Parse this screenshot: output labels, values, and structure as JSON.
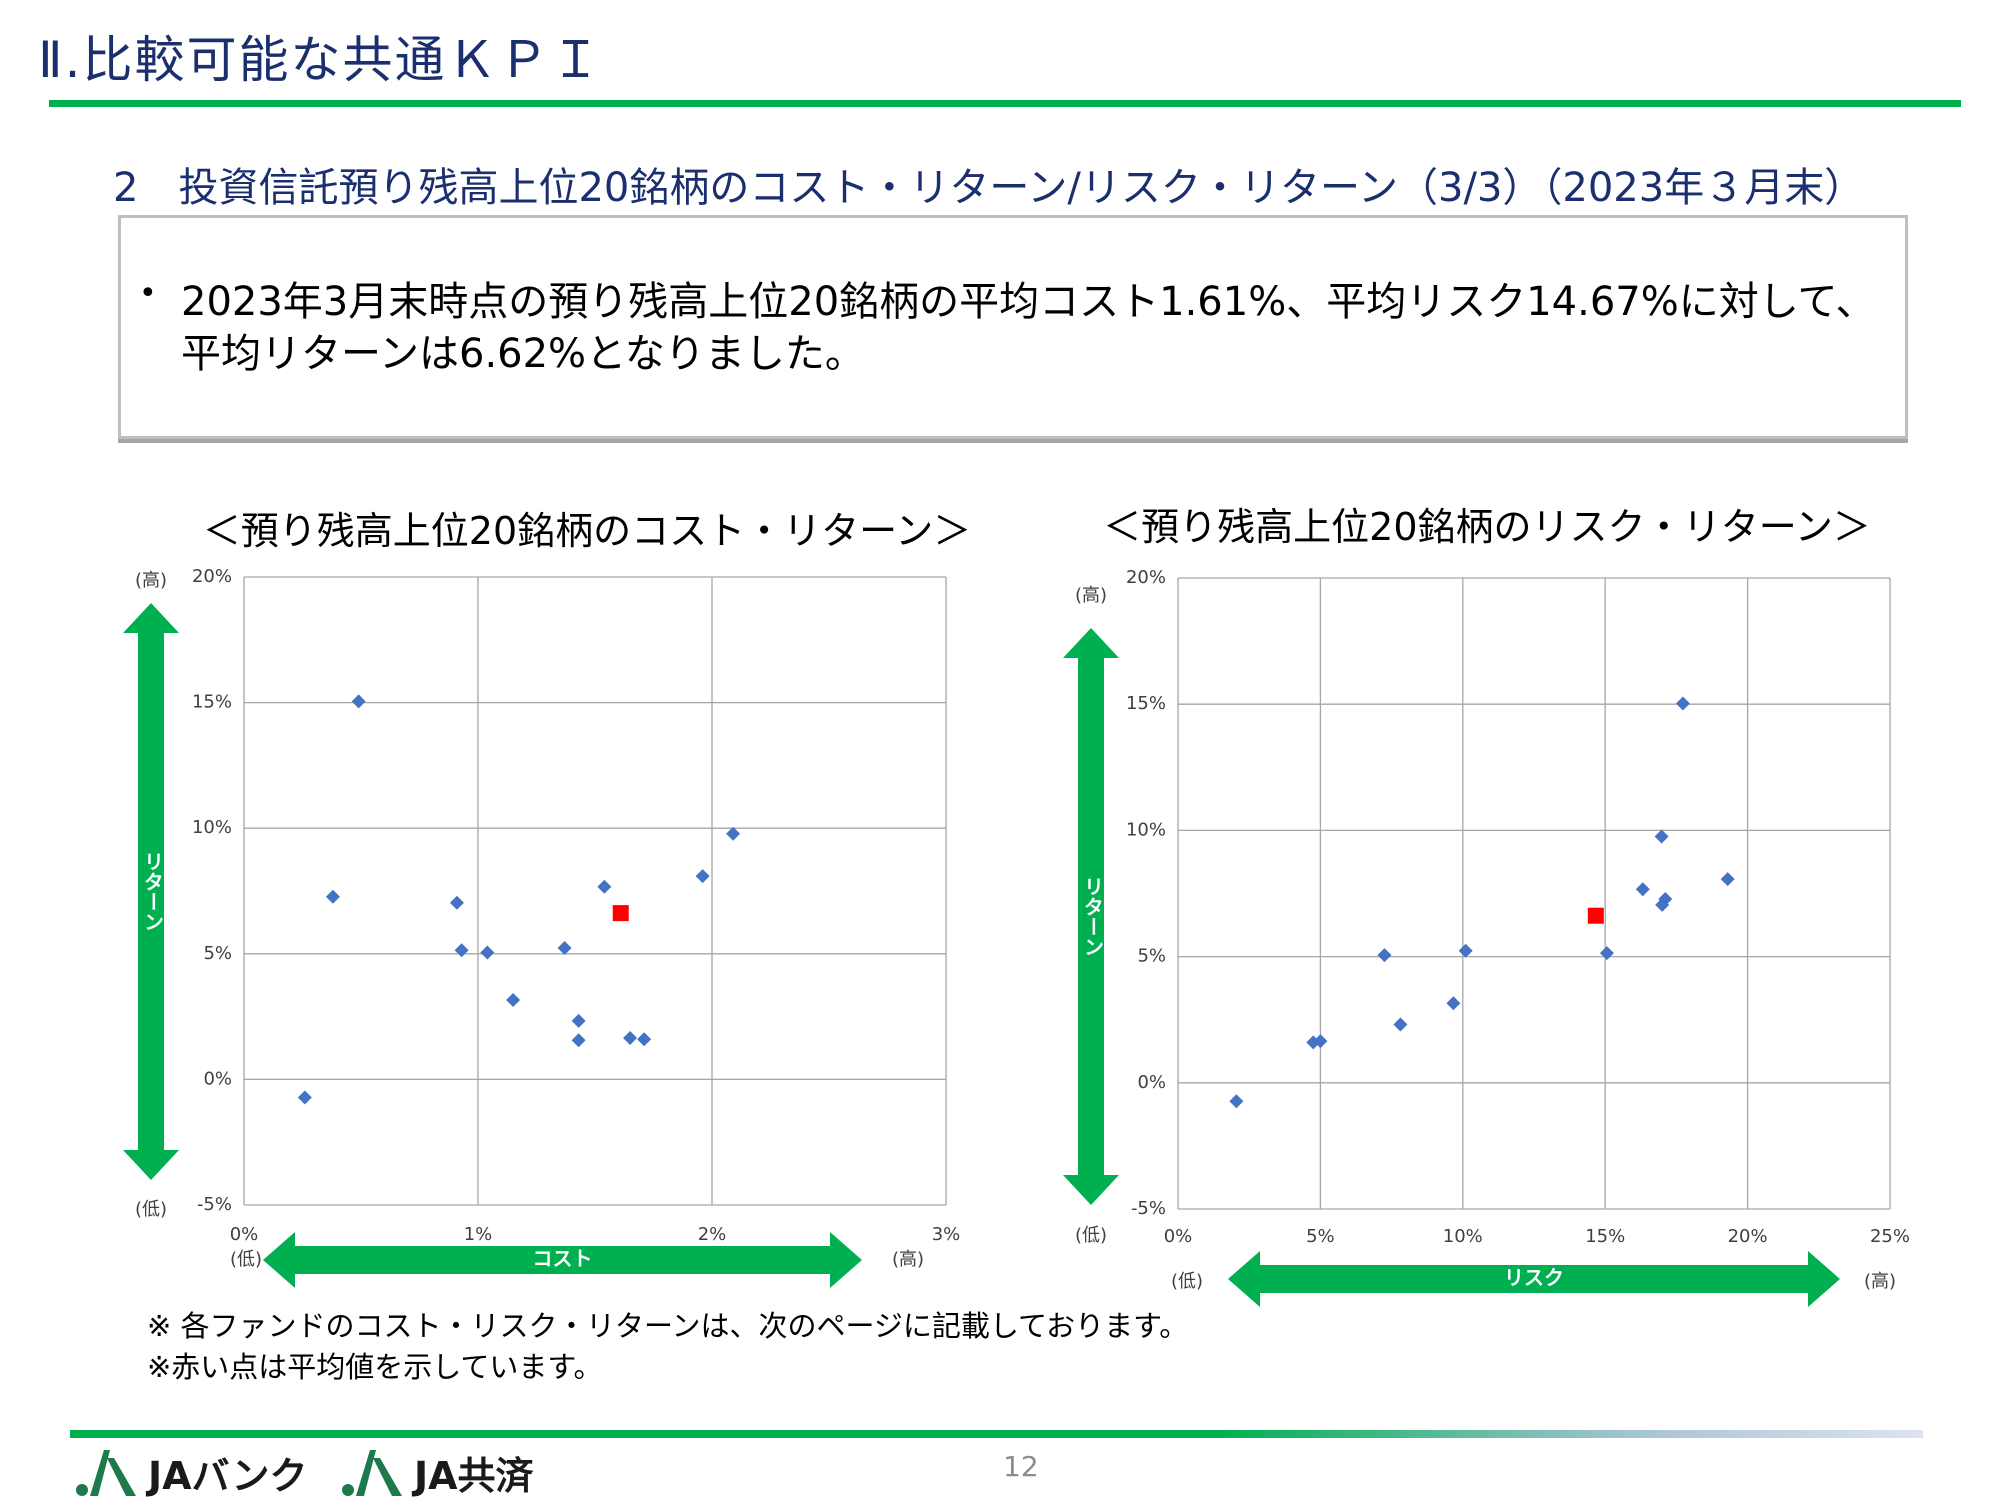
{
  "header": {
    "title": "Ⅱ.比較可能な共通ＫＰＩ",
    "subtitle": "2　投資信託預り残高上位20銘柄のコスト・リターン/リスク・リターン（3/3）（2023年３月末）"
  },
  "summary": {
    "bullet": "•",
    "text": "2023年3月末時点の預り残高上位20銘柄の平均コスト1.61%、平均リスク14.67%に対して、平均リターンは6.62%となりました。"
  },
  "colors": {
    "accent_green": "#00b050",
    "title_navy": "#1b2f6f",
    "fund_marker": "#4472c4",
    "average_marker": "#ff0000"
  },
  "chart_data": [
    {
      "type": "scatter",
      "title": "＜預り残高上位20銘柄のコスト・リターン＞",
      "xlabel": "コスト",
      "ylabel": "リターン",
      "x_low_label": "(低)",
      "x_high_label": "(高)",
      "y_low_label": "(低)",
      "y_high_label": "(高)",
      "xlim": [
        0,
        3
      ],
      "ylim": [
        -5,
        20
      ],
      "x_ticks": [
        0,
        1,
        2,
        3
      ],
      "x_tick_labels": [
        "0%",
        "1%",
        "2%",
        "3%"
      ],
      "y_ticks": [
        -5,
        0,
        5,
        10,
        15,
        20
      ],
      "y_tick_labels": [
        "-5%",
        "0%",
        "5%",
        "10%",
        "15%",
        "20%"
      ],
      "grid": true,
      "funds": [
        {
          "x": 0.49,
          "y": 15.05
        },
        {
          "x": 0.38,
          "y": 7.27
        },
        {
          "x": 0.91,
          "y": 7.03
        },
        {
          "x": 0.93,
          "y": 5.14
        },
        {
          "x": 1.04,
          "y": 5.05
        },
        {
          "x": 1.15,
          "y": 3.16
        },
        {
          "x": 1.37,
          "y": 5.23
        },
        {
          "x": 1.43,
          "y": 2.33
        },
        {
          "x": 1.43,
          "y": 1.56
        },
        {
          "x": 1.54,
          "y": 7.67
        },
        {
          "x": 1.65,
          "y": 1.65
        },
        {
          "x": 1.71,
          "y": 1.6
        },
        {
          "x": 1.96,
          "y": 8.09
        },
        {
          "x": 2.09,
          "y": 9.78
        },
        {
          "x": 0.26,
          "y": -0.72
        }
      ],
      "average": {
        "x": 1.61,
        "y": 6.62
      }
    },
    {
      "type": "scatter",
      "title": "＜預り残高上位20銘柄のリスク・リターン＞",
      "xlabel": "リスク",
      "ylabel": "リターン",
      "x_low_label": "(低)",
      "x_high_label": "(高)",
      "y_low_label": "(低)",
      "y_high_label": "(高)",
      "xlim": [
        0,
        25
      ],
      "ylim": [
        -5,
        20
      ],
      "x_ticks": [
        0,
        5,
        10,
        15,
        20,
        25
      ],
      "x_tick_labels": [
        "0%",
        "5%",
        "10%",
        "15%",
        "20%",
        "25%"
      ],
      "y_ticks": [
        -5,
        0,
        5,
        10,
        15,
        20
      ],
      "y_tick_labels": [
        "-5%",
        "0%",
        "5%",
        "10%",
        "15%",
        "20%"
      ],
      "grid": true,
      "funds": [
        {
          "x": 17.73,
          "y": 15.03
        },
        {
          "x": 16.98,
          "y": 9.76
        },
        {
          "x": 19.3,
          "y": 8.07
        },
        {
          "x": 16.32,
          "y": 7.67
        },
        {
          "x": 17.11,
          "y": 7.28
        },
        {
          "x": 17.0,
          "y": 7.05
        },
        {
          "x": 15.06,
          "y": 5.14
        },
        {
          "x": 10.1,
          "y": 5.23
        },
        {
          "x": 7.25,
          "y": 5.06
        },
        {
          "x": 9.67,
          "y": 3.15
        },
        {
          "x": 7.81,
          "y": 2.31
        },
        {
          "x": 4.75,
          "y": 1.6
        },
        {
          "x": 5.0,
          "y": 1.65
        },
        {
          "x": 2.05,
          "y": -0.73
        }
      ],
      "average": {
        "x": 14.67,
        "y": 6.62
      }
    }
  ],
  "notes": [
    "※ 各ファンドのコスト・リスク・リターンは、次のページに記載しております。",
    "※赤い点は平均値を示しています。"
  ],
  "footer": {
    "logo_bank": "JAバンク",
    "logo_kyosai": "JA共済",
    "page_number": "12"
  }
}
